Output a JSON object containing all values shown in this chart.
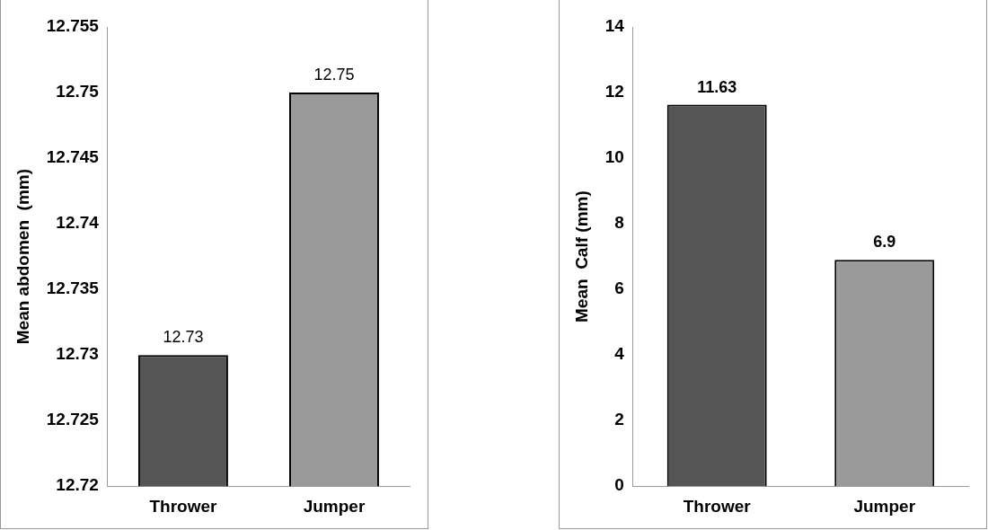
{
  "chart_data": [
    {
      "type": "bar",
      "ylabel": "Mean abdomen  (mm)",
      "categories": [
        "Thrower",
        "Jumper"
      ],
      "values": [
        12.73,
        12.75
      ],
      "colors": [
        "#555555",
        "#9a9a9a"
      ],
      "ylim": [
        12.72,
        12.755
      ],
      "yticks": [
        12.72,
        12.725,
        12.73,
        12.735,
        12.74,
        12.745,
        12.75,
        12.755
      ],
      "grid": false,
      "legend": false,
      "data_labels": true
    },
    {
      "type": "bar",
      "ylabel": "Mean  Calf (mm)",
      "categories": [
        "Thrower",
        "Jumper"
      ],
      "values": [
        11.63,
        6.9
      ],
      "colors": [
        "#555555",
        "#9a9a9a"
      ],
      "ylim": [
        0,
        14
      ],
      "yticks": [
        0,
        2,
        4,
        6,
        8,
        10,
        12,
        14
      ],
      "grid": false,
      "legend": false,
      "data_labels": true
    }
  ]
}
